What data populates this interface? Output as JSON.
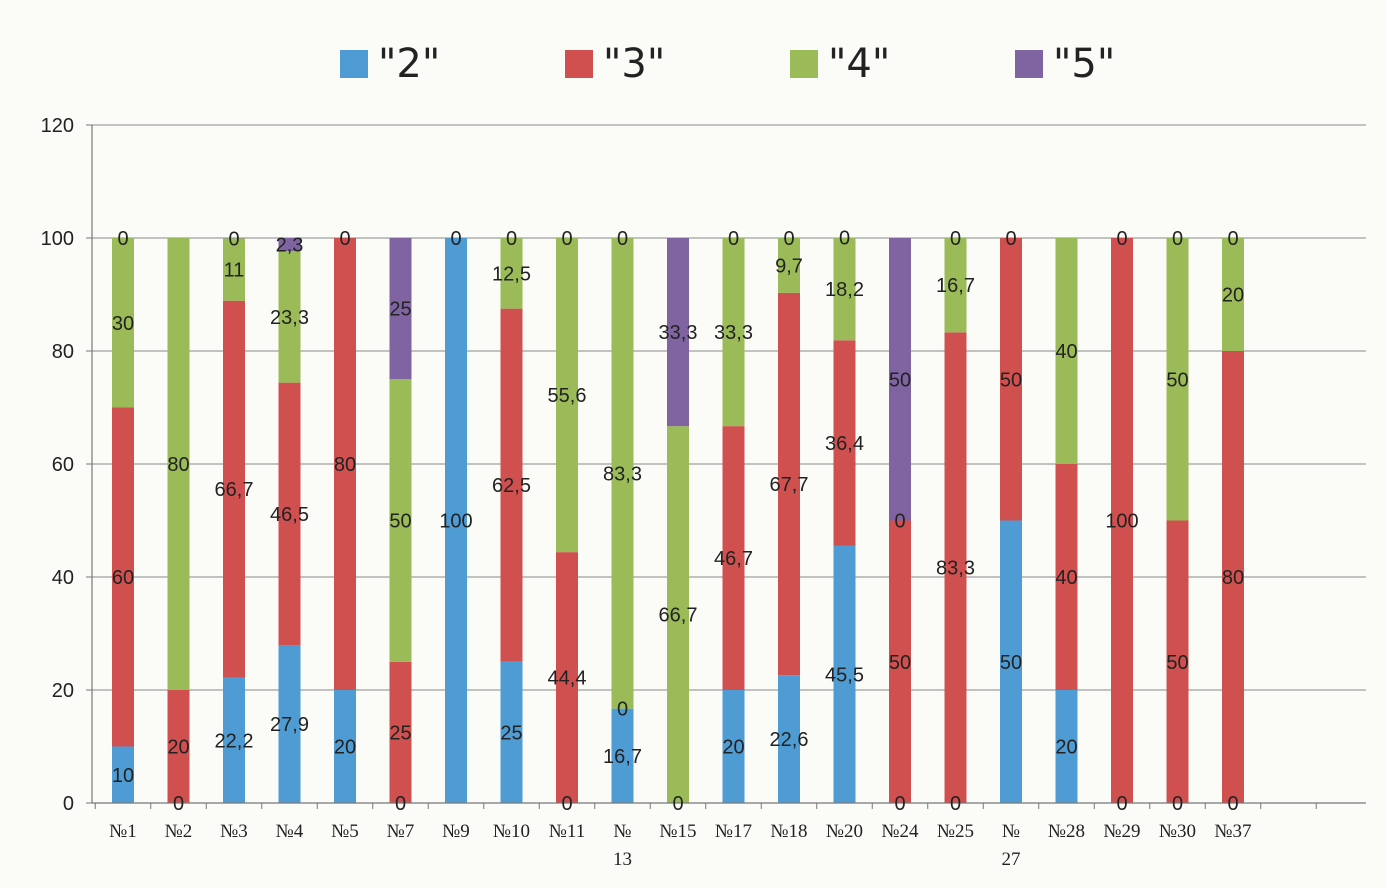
{
  "chart_data": {
    "type": "bar",
    "stacked": true,
    "categories": [
      "№1",
      "№2",
      "№3",
      "№4",
      "№5",
      "№7",
      "№9",
      "№10",
      "№11",
      "№13",
      "№15",
      "№17",
      "№18",
      "№20",
      "№24",
      "№25",
      "№27",
      "№28",
      "№29",
      "№30",
      "№37"
    ],
    "category_labels": [
      [
        "№1"
      ],
      [
        "№2"
      ],
      [
        "№3"
      ],
      [
        "№4"
      ],
      [
        "№5"
      ],
      [
        "№7"
      ],
      [
        "№9"
      ],
      [
        "№10"
      ],
      [
        "№11"
      ],
      [
        "№",
        "13"
      ],
      [
        "№15"
      ],
      [
        "№17"
      ],
      [
        "№18"
      ],
      [
        "№20"
      ],
      [
        "№24"
      ],
      [
        "№25"
      ],
      [
        "№",
        "27"
      ],
      [
        "№28"
      ],
      [
        "№29"
      ],
      [
        "№30"
      ],
      [
        "№37"
      ]
    ],
    "series": [
      {
        "name": "\"2\"",
        "color": "#4f9cd4",
        "values": [
          10,
          0,
          22.2,
          27.9,
          20,
          0,
          100,
          25,
          0,
          16.7,
          0,
          20,
          22.6,
          45.5,
          0,
          0,
          50,
          20,
          0,
          0,
          0
        ]
      },
      {
        "name": "\"3\"",
        "color": "#d0504f",
        "values": [
          60,
          20,
          66.7,
          46.5,
          80,
          25,
          0,
          62.5,
          44.4,
          0,
          0,
          46.7,
          67.7,
          36.4,
          50,
          83.3,
          50,
          40,
          100,
          50,
          80
        ]
      },
      {
        "name": "\"4\"",
        "color": "#9bbb59",
        "values": [
          30,
          80,
          11,
          23.3,
          0,
          50,
          0,
          12.5,
          55.6,
          83.3,
          66.7,
          33.3,
          9.7,
          18.2,
          0,
          16.7,
          0,
          40,
          0,
          50,
          20
        ]
      },
      {
        "name": "\"5\"",
        "color": "#8064a2",
        "values": [
          0,
          0,
          0,
          2.3,
          0,
          25,
          0,
          0,
          0,
          0,
          33.3,
          0,
          0,
          0,
          50,
          0,
          0,
          0,
          0,
          0,
          0
        ]
      }
    ],
    "data_labels": [
      [
        "10",
        "0",
        "22,2",
        "27,9",
        "20",
        "0",
        "100",
        "25",
        "0",
        "16,7",
        "0",
        "20",
        "22,6",
        "45,5",
        "0",
        "0",
        "50",
        "20",
        "0",
        "0",
        "0"
      ],
      [
        "60",
        "20",
        "66,7",
        "46,5",
        "80",
        "25",
        "",
        "62,5",
        "44,4",
        "0",
        "",
        "46,7",
        "67,7",
        "36,4",
        "50",
        "83,3",
        "50",
        "40",
        "100",
        "50",
        "80"
      ],
      [
        "30",
        "80",
        "11",
        "23,3",
        "",
        "50",
        "",
        "12,5",
        "55,6",
        "83,3",
        "66,7",
        "33,3",
        "9,7",
        "18,2",
        "0",
        "16,7",
        "",
        "40",
        "",
        "50",
        "20"
      ],
      [
        "0",
        "",
        "0",
        "2,3",
        "0",
        "25",
        "0",
        "0",
        "0",
        "0",
        "33,3",
        "0",
        "0",
        "0",
        "50",
        "0",
        "0",
        "",
        "0",
        "0",
        "0"
      ]
    ],
    "ylim": [
      0,
      120
    ],
    "yticks": [
      0,
      20,
      40,
      60,
      80,
      100,
      120
    ],
    "legend_position": "top",
    "grid": true
  }
}
